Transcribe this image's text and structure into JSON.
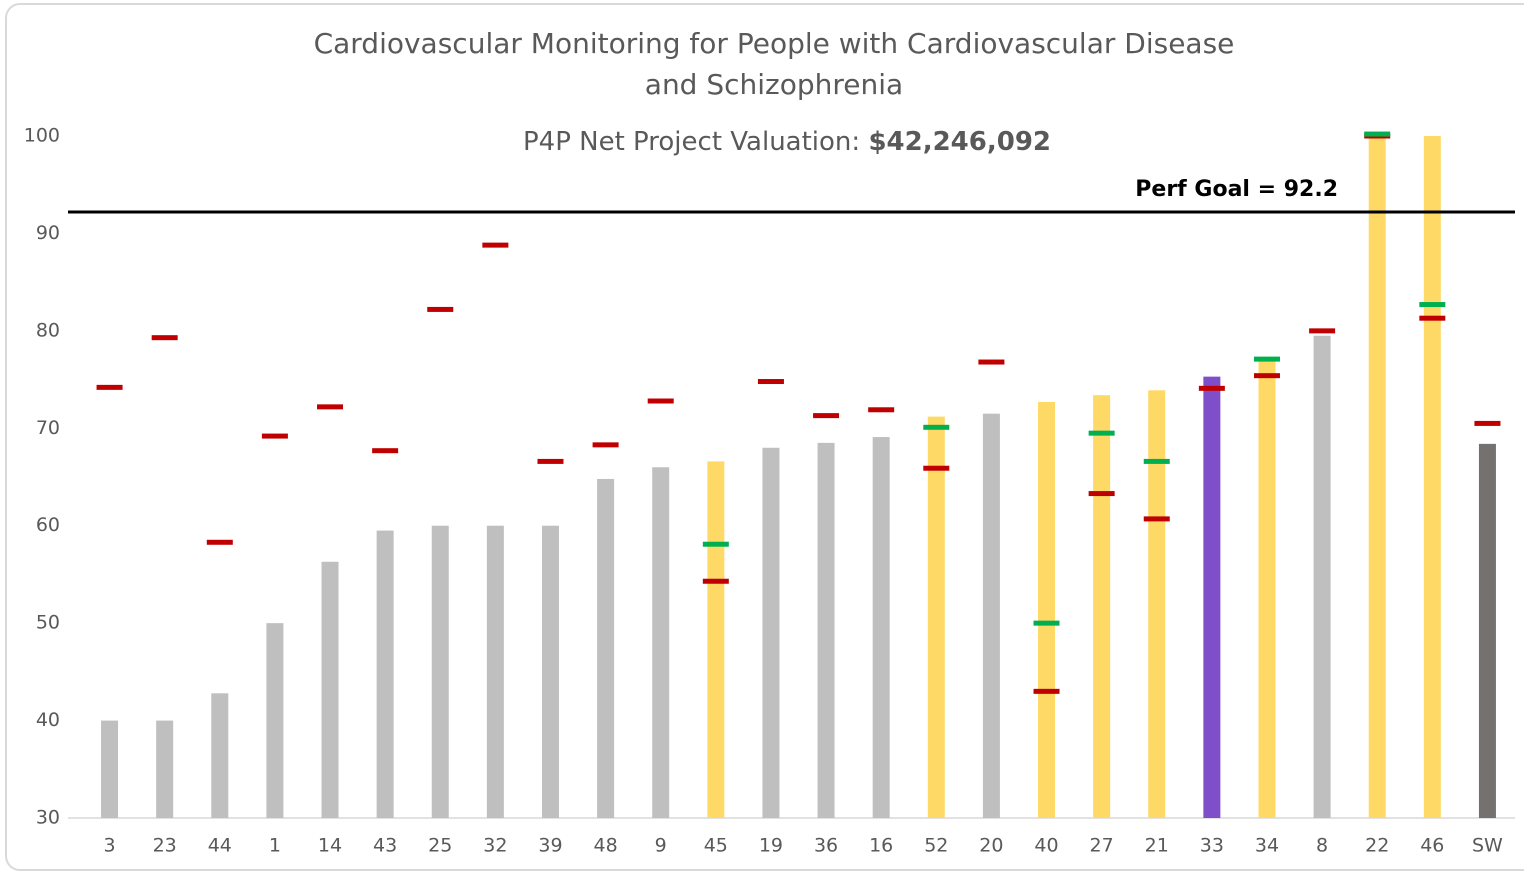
{
  "chart_data": {
    "type": "bar",
    "title": [
      "Cardiovascular Monitoring for People with Cardiovascular Disease",
      "and Schizophrenia"
    ],
    "subtitle": "P4P Net Project Valuation:",
    "valuation": "$42,246,092",
    "goal_label": "Perf Goal = 92.2",
    "goal": 92.2,
    "goal_color": "#000000",
    "categories": [
      "3",
      "23",
      "44",
      "1",
      "14",
      "43",
      "25",
      "32",
      "39",
      "48",
      "9",
      "45",
      "19",
      "36",
      "16",
      "52",
      "20",
      "40",
      "27",
      "21",
      "33",
      "34",
      "8",
      "22",
      "46",
      "SW"
    ],
    "values": [
      40,
      40,
      42.8,
      50,
      56.3,
      59.5,
      60,
      60,
      60,
      64.8,
      66,
      66.6,
      68,
      68.5,
      69.1,
      71.2,
      71.5,
      72.7,
      73.4,
      73.9,
      75.3,
      77,
      79.5,
      100,
      100,
      68.4
    ],
    "bar_colors": [
      "#bfbfbf",
      "#bfbfbf",
      "#bfbfbf",
      "#bfbfbf",
      "#bfbfbf",
      "#bfbfbf",
      "#bfbfbf",
      "#bfbfbf",
      "#bfbfbf",
      "#bfbfbf",
      "#bfbfbf",
      "#ffd966",
      "#bfbfbf",
      "#bfbfbf",
      "#bfbfbf",
      "#ffd966",
      "#bfbfbf",
      "#ffd966",
      "#ffd966",
      "#ffd966",
      "#7f4fc9",
      "#ffd966",
      "#bfbfbf",
      "#ffd966",
      "#ffd966",
      "#767171"
    ],
    "series": [
      {
        "color": "#c00000",
        "values": [
          74.2,
          79.3,
          58.3,
          69.2,
          72.2,
          67.7,
          82.2,
          88.8,
          66.6,
          68.3,
          72.8,
          54.3,
          74.8,
          71.3,
          71.9,
          65.9,
          76.8,
          43,
          63.3,
          60.7,
          74.1,
          75.4,
          80,
          100,
          81.3,
          70.5
        ]
      },
      {
        "color": "#00b050",
        "values": [
          null,
          null,
          null,
          null,
          null,
          null,
          null,
          null,
          null,
          null,
          null,
          58.1,
          null,
          null,
          null,
          70.1,
          null,
          50,
          69.5,
          66.6,
          null,
          77.1,
          null,
          100.2,
          82.7,
          null
        ]
      }
    ],
    "ylim": [
      30,
      100
    ],
    "yticks": [
      30,
      40,
      50,
      60,
      70,
      80,
      90,
      100
    ]
  }
}
